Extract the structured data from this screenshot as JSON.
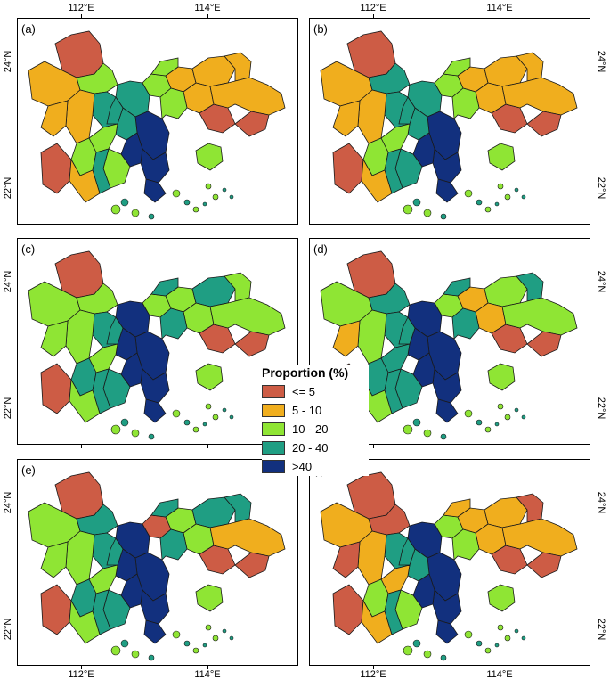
{
  "panels": [
    {
      "label": "(a)",
      "colors": [
        0,
        1,
        2,
        3,
        4,
        3,
        2,
        1,
        1,
        1,
        1,
        0,
        2,
        3,
        4,
        1,
        0,
        2,
        4,
        2,
        1,
        1,
        2,
        3,
        0,
        1,
        2,
        3,
        4,
        2
      ]
    },
    {
      "label": "(b)",
      "colors": [
        0,
        1,
        3,
        3,
        4,
        3,
        2,
        1,
        1,
        1,
        1,
        0,
        2,
        3,
        4,
        1,
        0,
        2,
        4,
        3,
        1,
        1,
        2,
        3,
        0,
        1,
        2,
        3,
        4,
        2
      ]
    },
    {
      "label": "(c)",
      "colors": [
        0,
        2,
        2,
        4,
        4,
        3,
        2,
        2,
        3,
        2,
        2,
        0,
        3,
        4,
        4,
        2,
        0,
        2,
        4,
        3,
        2,
        2,
        3,
        3,
        0,
        2,
        3,
        3,
        4,
        2
      ]
    },
    {
      "label": "(d)",
      "colors": [
        0,
        2,
        3,
        4,
        4,
        3,
        2,
        1,
        2,
        3,
        1,
        0,
        3,
        4,
        4,
        2,
        0,
        3,
        4,
        3,
        2,
        1,
        3,
        3,
        0,
        2,
        3,
        3,
        4,
        2
      ]
    },
    {
      "label": "(e)",
      "colors": [
        0,
        2,
        3,
        4,
        4,
        3,
        0,
        2,
        3,
        3,
        2,
        0,
        3,
        4,
        4,
        1,
        0,
        2,
        4,
        3,
        2,
        2,
        3,
        3,
        0,
        2,
        3,
        3,
        4,
        2
      ]
    },
    {
      "label": "(f)",
      "colors": [
        0,
        1,
        0,
        4,
        4,
        3,
        2,
        1,
        1,
        0,
        1,
        0,
        2,
        3,
        4,
        1,
        0,
        1,
        4,
        2,
        1,
        0,
        2,
        3,
        0,
        1,
        1,
        3,
        4,
        2
      ]
    }
  ],
  "axis": {
    "x_ticks": [
      "112°E",
      "114°E"
    ],
    "y_ticks": [
      "24°N",
      "22°N"
    ]
  },
  "legend": {
    "title": "Proportion (%)",
    "items": [
      {
        "label": "<= 5",
        "color": "#cd5c45"
      },
      {
        "label": "5 - 10",
        "color": "#f0ae1e"
      },
      {
        "label": "10 - 20",
        "color": "#8fe534"
      },
      {
        "label": "20 - 40",
        "color": "#1f9e83"
      },
      {
        "label": ">40",
        "color": "#12307e"
      }
    ]
  }
}
